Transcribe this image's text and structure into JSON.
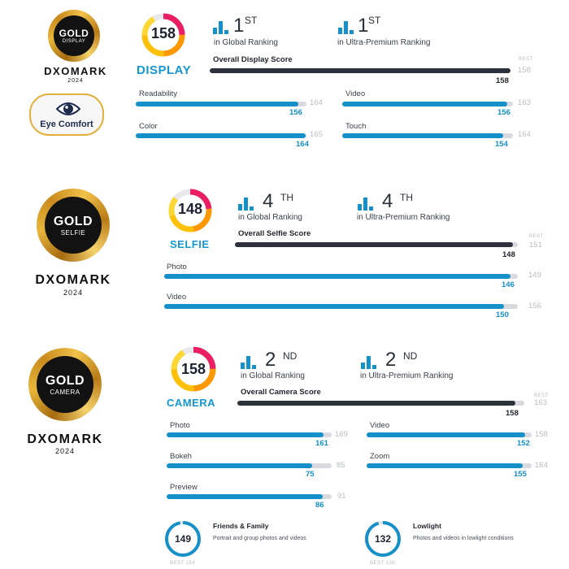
{
  "display": {
    "badge": {
      "tier": "GOLD",
      "category": "DISPLAY",
      "brand": "DXOMARK",
      "year": "2024"
    },
    "eye_comfort": "Eye Comfort",
    "score": "158",
    "label": "DISPLAY",
    "global_rank": {
      "number": "1",
      "suffix": "ST",
      "caption": "in Global Ranking"
    },
    "segment_rank": {
      "number": "1",
      "suffix": "ST",
      "caption": "in Ultra-Premium Ranking"
    },
    "overall": {
      "label": "Overall Display Score",
      "value": "158",
      "best": "158",
      "best_tag": "BEST"
    },
    "subscores": [
      {
        "label": "Readability",
        "value": "156",
        "best": "164"
      },
      {
        "label": "Video",
        "value": "156",
        "best": "163"
      },
      {
        "label": "Color",
        "value": "164",
        "best": "165"
      },
      {
        "label": "Touch",
        "value": "154",
        "best": "164"
      }
    ]
  },
  "selfie": {
    "badge": {
      "tier": "GOLD",
      "category": "SELFIE",
      "brand": "DXOMARK",
      "year": "2024"
    },
    "score": "148",
    "label": "SELFIE",
    "global_rank": {
      "number": "4",
      "suffix": "TH",
      "caption": "in Global Ranking"
    },
    "segment_rank": {
      "number": "4",
      "suffix": "TH",
      "caption": "in Ultra-Premium Ranking"
    },
    "overall": {
      "label": "Overall Selfie Score",
      "value": "148",
      "best": "151",
      "best_tag": "BEST"
    },
    "subscores": [
      {
        "label": "Photo",
        "value": "146",
        "best": "149"
      },
      {
        "label": "Video",
        "value": "150",
        "best": "156"
      }
    ]
  },
  "camera": {
    "badge": {
      "tier": "GOLD",
      "category": "CAMERA",
      "brand": "DXOMARK",
      "year": "2024"
    },
    "score": "158",
    "label": "CAMERA",
    "global_rank": {
      "number": "2",
      "suffix": "ND",
      "caption": "in Global Ranking"
    },
    "segment_rank": {
      "number": "2",
      "suffix": "ND",
      "caption": "in Ultra-Premium Ranking"
    },
    "overall": {
      "label": "Overall Camera Score",
      "value": "158",
      "best": "163",
      "best_tag": "BEST"
    },
    "subscores": [
      {
        "label": "Photo",
        "value": "161",
        "best": "169"
      },
      {
        "label": "Video",
        "value": "152",
        "best": "158"
      },
      {
        "label": "Bokeh",
        "value": "75",
        "best": "85"
      },
      {
        "label": "Zoom",
        "value": "155",
        "best": "164"
      },
      {
        "label": "Preview",
        "value": "86",
        "best": "91"
      }
    ],
    "extras": [
      {
        "score": "149",
        "title": "Friends & Family",
        "desc": "Portrait and group photos and videos",
        "best": "BEST 154"
      },
      {
        "score": "132",
        "title": "Lowlight",
        "desc": "Photos and videos in lowlight conditions",
        "best": "BEST 138"
      }
    ]
  },
  "colors": {
    "accent": "#1590c8",
    "dark": "#2c313b",
    "track": "#d8dadf",
    "gold": "#e2b03c"
  }
}
